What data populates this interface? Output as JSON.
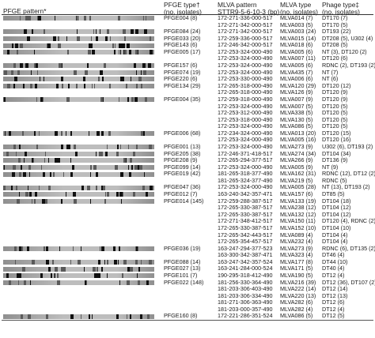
{
  "headers": {
    "pattern": "PFGE pattern*",
    "pfge_type": "PFGE type†\n(no. isolates)",
    "mlva_pattern": "MLVA pattern\nSTTR9-5-6-10-3 (bp)",
    "mlva_type": "MLVA type\n(no. isolates)",
    "phage_type": "Phage type‡\n(no. isolates)"
  },
  "gel": {
    "colors": {
      "band_dark": "#111111",
      "band_mid": "#5a5a5a",
      "lane_light": "#bdbdbd",
      "lane_mid": "#8f8f8f"
    }
  },
  "rows": [
    {
      "pfge": "PFGE004 (8)",
      "mlva": "172-271-336-000-517",
      "mt": "MLVA014 (7)",
      "pt": "DT170 (7)",
      "gel": true
    },
    {
      "pfge": "",
      "mlva": "172-271-342-000-517",
      "mt": "MLVA003 (5)",
      "pt": "DT170 (5)",
      "gel": false
    },
    {
      "pfge": "PFGE084 (24)",
      "mlva": "172-271-342-000-517",
      "mt": "MLVA003 (24)",
      "pt": "DT193 (22)",
      "gel": true
    },
    {
      "pfge": "PFGE033 (20)",
      "mlva": "172-259-336-000-517",
      "mt": "MLVA015 (14)",
      "pt": "DT208 (5), U302 (4)",
      "gel": true
    },
    {
      "pfge": "PFGE143 (6)",
      "mlva": "172-246-342-000-517",
      "mt": "MLVA018 (6)",
      "pt": "DT208 (5)",
      "gel": true
    },
    {
      "pfge": "PFGE005 (17)",
      "mlva": "172-253-324-000-490",
      "mt": "MLVA005 (6)",
      "pt": "NT (3), DT120 (2)",
      "gel": true
    },
    {
      "pfge": "",
      "mlva": "172-253-324-000-490",
      "mt": "MLVA007 (11)",
      "pt": "DT120 (6)",
      "gel": false
    },
    {
      "pfge": "PFGE157 (6)",
      "mlva": "172-253-324-000-490",
      "mt": "MLVA005 (6)",
      "pt": "RDNC (2), DT193 (2)",
      "gel": true
    },
    {
      "pfge": "PFGE074 (19)",
      "mlva": "172-253-324-000-490",
      "mt": "MLVA435 (7)",
      "pt": "NT (7)",
      "gel": true
    },
    {
      "pfge": "PFGE220 (6)",
      "mlva": "172-253-330-000-490",
      "mt": "MLVA006 (6)",
      "pt": "NT (6)",
      "gel": true
    },
    {
      "pfge": "PFGE134 (29)",
      "mlva": "172-265-318-000-490",
      "mt": "MLVA120 (29)",
      "pt": "DT120 (12)",
      "gel": true
    },
    {
      "pfge": "",
      "mlva": "172-265-318-000-490",
      "mt": "MLVA126 (9)",
      "pt": "DT120 (9)",
      "gel": false
    },
    {
      "pfge": "PFGE004 (35)",
      "mlva": "172-259-318-000-490",
      "mt": "MLVA007 (9)",
      "pt": "DT120 (9)",
      "gel": true
    },
    {
      "pfge": "",
      "mlva": "172-253-324-000-490",
      "mt": "MLVA007 (5)",
      "pt": "DT120 (5)",
      "gel": false
    },
    {
      "pfge": "",
      "mlva": "172-253-312-000-490",
      "mt": "MLVA338 (5)",
      "pt": "DT120 (5)",
      "gel": false
    },
    {
      "pfge": "",
      "mlva": "172-253-318-000-490",
      "mt": "MLVA130 (5)",
      "pt": "DT120 (5)",
      "gel": false
    },
    {
      "pfge": "",
      "mlva": "172-253-324-000-490",
      "mt": "MLVA086 (5)",
      "pt": "DT120 (5)",
      "gel": false
    },
    {
      "pfge": "PFGE006 (68)",
      "mlva": "172-234-324-000-490",
      "mt": "MLVA013 (20)",
      "pt": "DT120 (15)",
      "gel": true
    },
    {
      "pfge": "",
      "mlva": "172-253-324-000-490",
      "mt": "MLVA005 (16)",
      "pt": "DT120 (16)",
      "gel": false
    },
    {
      "pfge": "PFGE001 (13)",
      "mlva": "172-253-324-000-490",
      "mt": "MLVA273 (9)",
      "pt": "U302 (6), DT193 (2)",
      "gel": true
    },
    {
      "pfge": "PFGE205 (38)",
      "mlva": "172-246-371-418-517",
      "mt": "MLVA274 (34)",
      "pt": "DT104 (34)",
      "gel": true
    },
    {
      "pfge": "PFGE208 (9)",
      "mlva": "172-265-294-377-517",
      "mt": "MLVA266 (9)",
      "pt": "DT136 (9)",
      "gel": true
    },
    {
      "pfge": "PFGE099 (14)",
      "mlva": "172-253-324-000-490",
      "mt": "MLVA005 (9)",
      "pt": "NT (9)",
      "gel": true
    },
    {
      "pfge": "PFGE019 (42)",
      "mlva": "181-265-318-377-490",
      "mt": "MLVA162 (31)",
      "pt": "RDNC (12), DT12 (2)",
      "gel": true
    },
    {
      "pfge": "",
      "mlva": "181-265-324-377-490",
      "mt": "MLVA219 (5)",
      "pt": "RDNC (5)",
      "gel": false
    },
    {
      "pfge": "PFGE047 (36)",
      "mlva": "172-253-324-000-490",
      "mt": "MLVA005 (28)",
      "pt": "NT (13), DT193 (2)",
      "gel": true
    },
    {
      "pfge": "PFGE012 (7)",
      "mlva": "163-240-342-357-471",
      "mt": "MLVA157 (6)",
      "pt": "DT85 (5)",
      "gel": true
    },
    {
      "pfge": "PFGE014 (145)",
      "mlva": "172-259-288-387-517",
      "mt": "MLVA133 (19)",
      "pt": "DT104 (18)",
      "gel": true
    },
    {
      "pfge": "",
      "mlva": "172-265-330-387-517",
      "mt": "MLVA238 (12)",
      "pt": "DT104 (12)",
      "gel": false
    },
    {
      "pfge": "",
      "mlva": "172-265-330-387-517",
      "mt": "MLVA132 (12)",
      "pt": "DT104 (12)",
      "gel": false
    },
    {
      "pfge": "",
      "mlva": "172-271-348-412-517",
      "mt": "MLVA150 (11)",
      "pt": "DT120 (4), RDNC (2)",
      "gel": false
    },
    {
      "pfge": "",
      "mlva": "172-265-330-387-517",
      "mt": "MLVA152 (10)",
      "pt": "DT104 (10)",
      "gel": false
    },
    {
      "pfge": "",
      "mlva": "172-265-342-443-517",
      "mt": "MLVA089 (4)",
      "pt": "DT104 (4)",
      "gel": false
    },
    {
      "pfge": "",
      "mlva": "172-265-354-457-517",
      "mt": "MLVA232 (4)",
      "pt": "DT104 (4)",
      "gel": false
    },
    {
      "pfge": "PFGE036 (19)",
      "mlva": "163-247-294-377-523",
      "mt": "MLVA273 (9)",
      "pt": "RDNC (6), DT135 (2)",
      "gel": true
    },
    {
      "pfge": "",
      "mlva": "163-300-342-387-471",
      "mt": "MLVA323 (4)",
      "pt": "DT46 (4)",
      "gel": false
    },
    {
      "pfge": "PFGE088 (14)",
      "mlva": "163-247-342-357-524",
      "mt": "MLVA177 (8)",
      "pt": "DT44 (10)",
      "gel": true
    },
    {
      "pfge": "PFGE027 (13)",
      "mlva": "163-241-284-000-524",
      "mt": "MLVA171 (5)",
      "pt": "DT40 (4)",
      "gel": true
    },
    {
      "pfge": "PFGE101 (7)",
      "mlva": "190-295-318-412-490",
      "mt": "MLVA190 (5)",
      "pt": "DT12 (4)",
      "gel": true
    },
    {
      "pfge": "PFGE022 (148)",
      "mlva": "181-256-330-364-490",
      "mt": "MLVA216 (39)",
      "pt": "DT12 (36), DT107 (2)",
      "gel": true
    },
    {
      "pfge": "",
      "mlva": "181-203-306-403-490",
      "mt": "MLVA222 (14)",
      "pt": "DT12 (14)",
      "gel": false
    },
    {
      "pfge": "",
      "mlva": "181-203-306-334-490",
      "mt": "MLVA220 (13)",
      "pt": "DT12 (13)",
      "gel": false
    },
    {
      "pfge": "",
      "mlva": "181-271-306-363-490",
      "mt": "MLVA282 (6)",
      "pt": "DT12 (6)",
      "gel": false
    },
    {
      "pfge": "",
      "mlva": "181-203-000-357-490",
      "mt": "MLVA282 (4)",
      "pt": "DT12 (4)",
      "gel": false
    },
    {
      "pfge": "PFGE160 (8)",
      "mlva": "172-221-286-351-524",
      "mt": "MLVA086 (5)",
      "pt": "DT12 (5)",
      "gel": true
    }
  ]
}
